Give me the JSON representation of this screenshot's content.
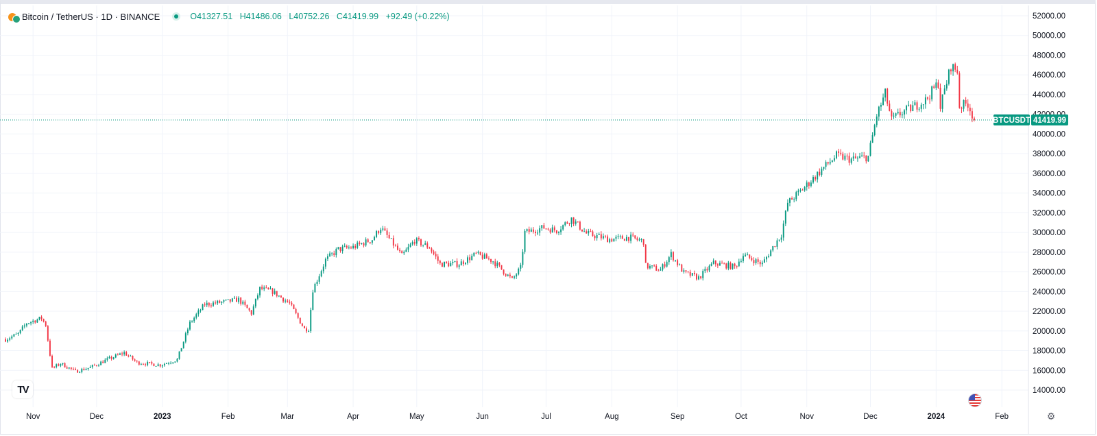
{
  "legend": {
    "symbol": "Bitcoin / TetherUS · 1D · BINANCE",
    "open_label": "O",
    "open": "41327.51",
    "high_label": "H",
    "high": "41486.06",
    "low_label": "L",
    "low": "40752.26",
    "close_label": "C",
    "close": "41419.99",
    "change": "+92.49 (+0.22%)"
  },
  "price_tag": {
    "symbol": "BTCUSDT",
    "price": "41419.99"
  },
  "colors": {
    "up": "#089981",
    "down": "#f23645",
    "grid": "#f0f3fa",
    "axis_text": "#131722",
    "price_tag": "#089981"
  },
  "icons": {
    "logo": "tradingview-logo-icon",
    "flag": "us-flag-icon",
    "settings": "gear-icon"
  },
  "chart_data": {
    "type": "candlestick",
    "interval": "1D",
    "x_start": "2022-10-19",
    "x_end": "2024-01-19",
    "x_tick_labels": [
      "Nov",
      "Dec",
      "2023",
      "Feb",
      "Mar",
      "Apr",
      "May",
      "Jun",
      "Jul",
      "Aug",
      "Sep",
      "Oct",
      "Nov",
      "Dec",
      "2024",
      "Feb"
    ],
    "x_tick_dates": [
      "2022-11-01",
      "2022-12-01",
      "2023-01-01",
      "2023-02-01",
      "2023-03-01",
      "2023-04-01",
      "2023-05-01",
      "2023-06-01",
      "2023-07-01",
      "2023-08-01",
      "2023-09-01",
      "2023-10-01",
      "2023-11-01",
      "2023-12-01",
      "2024-01-01",
      "2024-02-01"
    ],
    "y_tick_labels": [
      "52000.00",
      "50000.00",
      "48000.00",
      "46000.00",
      "44000.00",
      "42000.00",
      "40000.00",
      "38000.00",
      "36000.00",
      "34000.00",
      "32000.00",
      "30000.00",
      "28000.00",
      "26000.00",
      "24000.00",
      "22000.00",
      "20000.00",
      "18000.00",
      "16000.00",
      "14000.00"
    ],
    "ylim": [
      13000,
      53000
    ],
    "grid": true,
    "last_price": 41419.99,
    "close_path": [
      [
        "2022-10-19",
        19150
      ],
      [
        "2022-10-25",
        19700
      ],
      [
        "2022-10-29",
        20800
      ],
      [
        "2022-11-05",
        21300
      ],
      [
        "2022-11-07",
        20600
      ],
      [
        "2022-11-09",
        17600
      ],
      [
        "2022-11-10",
        16200
      ],
      [
        "2022-11-14",
        16700
      ],
      [
        "2022-11-21",
        15900
      ],
      [
        "2022-11-28",
        16300
      ],
      [
        "2022-12-05",
        17000
      ],
      [
        "2022-12-14",
        17800
      ],
      [
        "2022-12-20",
        16800
      ],
      [
        "2022-12-31",
        16550
      ],
      [
        "2023-01-08",
        17100
      ],
      [
        "2023-01-14",
        20800
      ],
      [
        "2023-01-21",
        22700
      ],
      [
        "2023-02-01",
        23000
      ],
      [
        "2023-02-06",
        23200
      ],
      [
        "2023-02-12",
        21800
      ],
      [
        "2023-02-16",
        24300
      ],
      [
        "2023-02-22",
        24000
      ],
      [
        "2023-03-02",
        22800
      ],
      [
        "2023-03-09",
        20200
      ],
      [
        "2023-03-11",
        20200
      ],
      [
        "2023-03-13",
        24200
      ],
      [
        "2023-03-19",
        27200
      ],
      [
        "2023-03-25",
        28300
      ],
      [
        "2023-04-01",
        28500
      ],
      [
        "2023-04-10",
        29300
      ],
      [
        "2023-04-14",
        30500
      ],
      [
        "2023-04-20",
        28800
      ],
      [
        "2023-04-24",
        27600
      ],
      [
        "2023-04-30",
        29200
      ],
      [
        "2023-05-07",
        28500
      ],
      [
        "2023-05-12",
        26800
      ],
      [
        "2023-05-21",
        26800
      ],
      [
        "2023-05-29",
        27800
      ],
      [
        "2023-06-06",
        27100
      ],
      [
        "2023-06-15",
        25200
      ],
      [
        "2023-06-19",
        26400
      ],
      [
        "2023-06-21",
        30000
      ],
      [
        "2023-06-30",
        30500
      ],
      [
        "2023-07-06",
        30200
      ],
      [
        "2023-07-13",
        31400
      ],
      [
        "2023-07-20",
        29900
      ],
      [
        "2023-07-31",
        29300
      ],
      [
        "2023-08-09",
        29500
      ],
      [
        "2023-08-16",
        29100
      ],
      [
        "2023-08-17",
        26600
      ],
      [
        "2023-08-24",
        26200
      ],
      [
        "2023-08-29",
        27800
      ],
      [
        "2023-09-04",
        25900
      ],
      [
        "2023-09-11",
        25400
      ],
      [
        "2023-09-18",
        26900
      ],
      [
        "2023-09-28",
        26500
      ],
      [
        "2023-10-02",
        27700
      ],
      [
        "2023-10-11",
        26800
      ],
      [
        "2023-10-16",
        28500
      ],
      [
        "2023-10-20",
        29800
      ],
      [
        "2023-10-23",
        33000
      ],
      [
        "2023-10-31",
        34600
      ],
      [
        "2023-11-09",
        36600
      ],
      [
        "2023-11-15",
        37800
      ],
      [
        "2023-11-22",
        37400
      ],
      [
        "2023-11-30",
        37700
      ],
      [
        "2023-12-04",
        41900
      ],
      [
        "2023-12-08",
        44100
      ],
      [
        "2023-12-11",
        41400
      ],
      [
        "2023-12-16",
        42200
      ],
      [
        "2023-12-19",
        42500
      ],
      [
        "2023-12-27",
        43400
      ],
      [
        "2024-01-02",
        45200
      ],
      [
        "2024-01-03",
        42800
      ],
      [
        "2024-01-08",
        46900
      ],
      [
        "2024-01-11",
        46400
      ],
      [
        "2024-01-12",
        42800
      ],
      [
        "2024-01-16",
        43100
      ],
      [
        "2024-01-19",
        41420
      ]
    ]
  }
}
